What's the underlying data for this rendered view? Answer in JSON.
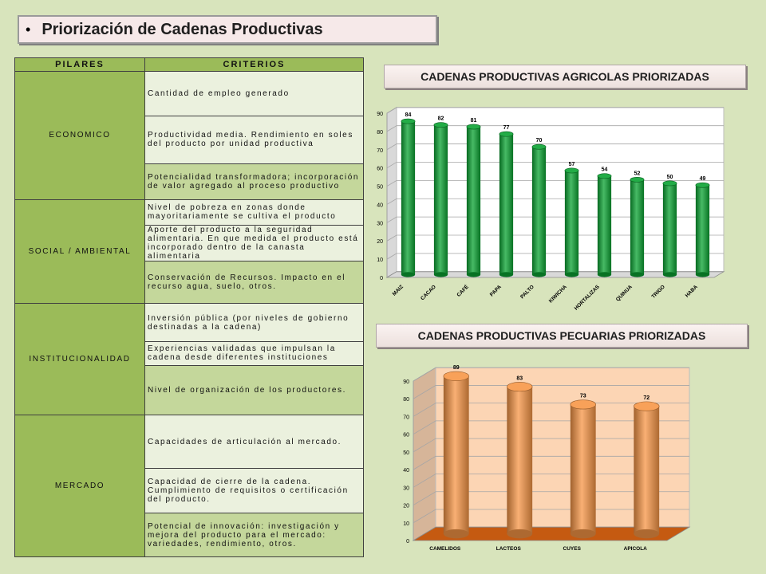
{
  "slide": {
    "title": "Priorización de Cadenas Productivas",
    "bullet": "•"
  },
  "table": {
    "header_pillar": "PILARES",
    "header_criteria": "CRITERIOS",
    "pillars": [
      {
        "name": "ECONOMICO",
        "criteria": [
          "Cantidad de empleo generado",
          "Productividad media. Rendimiento en soles del producto por unidad productiva",
          "Potencialidad transformadora; incorporación de valor agregado al proceso productivo"
        ]
      },
      {
        "name": "SOCIAL / AMBIENTAL",
        "criteria": [
          "Nivel de pobreza en zonas donde mayoritariamente se cultiva el producto",
          "Aporte del producto a la seguridad alimentaria. En que medida el producto está incorporado dentro de la canasta alimentaria",
          "Conservación de Recursos. Impacto en el recurso agua, suelo, otros."
        ]
      },
      {
        "name": "INSTITUCIONALIDAD",
        "criteria": [
          "Inversión pública (por niveles de gobierno destinadas a la cadena)",
          "Experiencias validadas que impulsan la cadena desde diferentes instituciones",
          "Nivel de organización de los productores."
        ]
      },
      {
        "name": "MERCADO",
        "criteria": [
          "Capacidades de articulación al mercado.",
          "Capacidad de cierre de la cadena. Cumplimiento de requisitos o certificación del producto.",
          "Potencial de innovación: investigación y mejora del producto para el mercado: variedades, rendimiento, otros."
        ]
      }
    ]
  },
  "chart_data": [
    {
      "type": "bar",
      "title": "CADENAS PRODUCTIVAS AGRICOLAS PRIORIZADAS",
      "categories": [
        "MAIZ",
        "CACAO",
        "CAFÉ",
        "PAPA",
        "PALTO",
        "KIWICHA",
        "HORTALIZAS",
        "QUINUA",
        "TRIGO",
        "HABA"
      ],
      "values": [
        84,
        82,
        81,
        77,
        70,
        57,
        54,
        52,
        50,
        49
      ],
      "ylim": [
        0,
        90
      ],
      "yticks": [
        0,
        10,
        20,
        30,
        40,
        50,
        60,
        70,
        80,
        90
      ],
      "grid": true,
      "bar_color": "#0aa332",
      "background": "#ffffff"
    },
    {
      "type": "bar",
      "title": "CADENAS PRODUCTIVAS PECUARIAS PRIORIZADAS",
      "categories": [
        "CAMELIDOS",
        "LACTEOS",
        "CUYES",
        "APICOLA"
      ],
      "values": [
        89,
        83,
        73,
        72
      ],
      "ylim": [
        0,
        90
      ],
      "yticks": [
        0,
        10,
        20,
        30,
        40,
        50,
        60,
        70,
        80,
        90
      ],
      "grid": true,
      "bar_color": "#f79646",
      "background": "#fcd5b4",
      "floor_color": "#c55a11"
    }
  ]
}
